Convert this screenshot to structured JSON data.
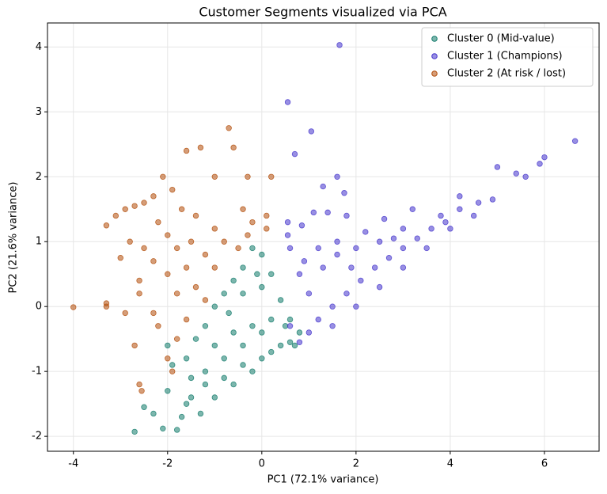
{
  "chart_data": {
    "type": "scatter",
    "title": "Customer Segments visualized via PCA",
    "xlabel": "PC1 (72.1% variance)",
    "ylabel": "PC2 (21.6% variance)",
    "xlim": [
      -4.55,
      7.16
    ],
    "ylim": [
      -2.23,
      4.37
    ],
    "xticks": [
      -4,
      -2,
      0,
      2,
      4,
      6
    ],
    "yticks": [
      -2,
      -1,
      0,
      1,
      2,
      3,
      4
    ],
    "grid": true,
    "legend": "upper right",
    "series": [
      {
        "name": "Cluster 0 (Mid-value)",
        "color": "#117a6a",
        "x": [
          -2.7,
          -2.1,
          -1.8,
          -2.5,
          -2.3,
          -2.0,
          -1.7,
          -1.5,
          -1.3,
          -1.2,
          -1.0,
          -0.8,
          -0.6,
          -0.4,
          -0.2,
          0.0,
          0.2,
          0.4,
          0.6,
          0.8,
          0.6,
          0.4,
          0.2,
          0.0,
          -0.2,
          -0.4,
          -0.6,
          -0.8,
          -1.0,
          -1.2,
          -1.4,
          -1.6,
          -1.9,
          -2.0,
          -1.0,
          -0.6,
          -0.2,
          0.2,
          -0.4,
          0.0,
          -0.8,
          -0.4,
          0.0,
          -1.2,
          -1.5,
          0.5,
          0.7,
          -0.1,
          -0.7,
          -1.6
        ],
        "values": [
          -1.93,
          -1.88,
          -1.9,
          -1.55,
          -1.65,
          -1.3,
          -1.7,
          -1.4,
          -1.65,
          -1.2,
          -1.4,
          -1.1,
          -1.2,
          -0.9,
          -1.0,
          -0.8,
          -0.7,
          -0.6,
          -0.55,
          -0.4,
          -0.2,
          0.1,
          0.5,
          0.8,
          0.9,
          0.6,
          0.4,
          0.2,
          0.0,
          -0.3,
          -0.5,
          -0.8,
          -0.9,
          -0.6,
          -0.6,
          -0.4,
          -0.3,
          -0.2,
          0.2,
          0.3,
          -0.8,
          -0.6,
          -0.4,
          -1.0,
          -1.1,
          -0.3,
          -0.6,
          0.5,
          -0.1,
          -1.5
        ]
      },
      {
        "name": "Cluster 1 (Champions)",
        "color": "#4433cc",
        "x": [
          0.6,
          0.8,
          1.0,
          1.2,
          1.5,
          1.8,
          2.1,
          2.4,
          2.7,
          3.0,
          3.3,
          3.6,
          3.9,
          4.2,
          4.0,
          3.5,
          3.0,
          2.5,
          2.0,
          1.5,
          1.0,
          0.8,
          0.6,
          0.9,
          1.3,
          1.6,
          2.0,
          2.5,
          3.0,
          1.2,
          1.6,
          0.55,
          1.1,
          1.4,
          1.8,
          2.6,
          4.2,
          4.6,
          4.9,
          5.0,
          5.4,
          5.6,
          5.9,
          6.0,
          6.65,
          1.6,
          1.75,
          0.55,
          0.85,
          0.55,
          1.05,
          1.65,
          0.7,
          1.3,
          4.5,
          3.2,
          2.2,
          1.9,
          2.8,
          3.8
        ],
        "values": [
          -0.3,
          -0.55,
          -0.4,
          -0.2,
          0.0,
          0.2,
          0.4,
          0.6,
          0.75,
          0.9,
          1.05,
          1.2,
          1.3,
          1.5,
          1.2,
          0.9,
          0.6,
          0.3,
          0.0,
          -0.3,
          0.2,
          0.5,
          0.9,
          0.7,
          0.6,
          0.8,
          0.9,
          1.0,
          1.2,
          0.9,
          1.0,
          1.1,
          1.45,
          1.45,
          1.4,
          1.35,
          1.7,
          1.6,
          1.65,
          2.15,
          2.05,
          2.0,
          2.2,
          2.3,
          2.55,
          2.0,
          1.75,
          1.3,
          1.25,
          3.15,
          2.7,
          4.03,
          2.35,
          1.85,
          1.4,
          1.5,
          1.15,
          0.6,
          1.05,
          1.4
        ]
      },
      {
        "name": "Cluster 2 (At risk / lost)",
        "color": "#b34d0a",
        "x": [
          -4.0,
          -3.3,
          -3.1,
          -2.9,
          -2.7,
          -2.5,
          -2.3,
          -2.1,
          -1.9,
          -1.6,
          -1.3,
          -0.7,
          -0.6,
          -0.3,
          0.2,
          -1.0,
          -0.4,
          0.1,
          -2.8,
          -3.0,
          -3.3,
          -3.3,
          -2.9,
          -2.6,
          -2.7,
          -2.6,
          -2.55,
          -2.3,
          -2.5,
          -2.2,
          -2.0,
          -1.8,
          -1.6,
          -1.4,
          -1.2,
          -2.0,
          -1.8,
          -1.6,
          -1.8,
          -2.0,
          -1.2,
          -1.0,
          -0.8,
          -0.5,
          -0.3,
          -1.4,
          -1.7,
          -2.3,
          -1.0,
          -2.2,
          -1.9,
          -2.6,
          0.1,
          -0.2,
          -1.5
        ],
        "values": [
          -0.01,
          1.25,
          1.4,
          1.5,
          1.55,
          1.6,
          1.7,
          2.0,
          1.8,
          2.4,
          2.45,
          2.75,
          2.45,
          2.0,
          2.0,
          2.0,
          1.5,
          1.4,
          1.0,
          0.75,
          0.05,
          0.0,
          -0.1,
          0.4,
          -0.6,
          -1.2,
          -1.3,
          -0.1,
          0.9,
          1.3,
          1.1,
          0.9,
          0.6,
          0.3,
          0.1,
          0.5,
          0.2,
          -0.2,
          -0.5,
          -0.8,
          0.8,
          1.2,
          1.0,
          0.9,
          1.1,
          1.4,
          1.5,
          0.7,
          0.6,
          -0.3,
          -1.0,
          0.2,
          1.2,
          1.3,
          1.0
        ]
      }
    ]
  }
}
